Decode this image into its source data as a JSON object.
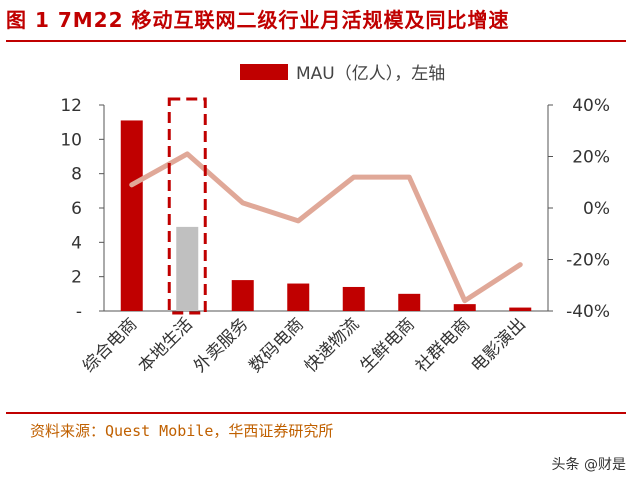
{
  "title": "图 1  7M22 移动互联网二级行业月活规模及同比增速",
  "source": "资料来源：Quest Mobile，华西证券研究所",
  "watermark": "头条 @财是",
  "colors": {
    "bar": "#c00000",
    "highlight_bar": "#c0c0c0",
    "line": "#e0a898",
    "axis": "#555555",
    "title": "#c00000",
    "source": "#c06000"
  },
  "chart_data": {
    "type": "bar",
    "categories": [
      "综合电商",
      "本地生活",
      "外卖服务",
      "数码电商",
      "快递物流",
      "生鲜电商",
      "社群电商",
      "电影演出"
    ],
    "series": [
      {
        "name": "MAU（亿人），左轴",
        "type": "bar",
        "axis": "left",
        "values": [
          11.1,
          4.9,
          1.8,
          1.6,
          1.4,
          1.0,
          0.4,
          0.2
        ],
        "highlight_index": 1
      },
      {
        "type": "line",
        "axis": "right",
        "values": [
          9,
          21,
          2,
          -5,
          12,
          12,
          -36,
          -22
        ]
      }
    ],
    "left_axis": {
      "ylim": [
        0,
        12
      ],
      "ticks": [
        "-",
        "2",
        "4",
        "6",
        "8",
        "10",
        "12"
      ]
    },
    "right_axis": {
      "ylim": [
        -40,
        40
      ],
      "ticks": [
        "-40%",
        "-20%",
        "0%",
        "20%",
        "40%"
      ]
    },
    "legend": {
      "position": "top",
      "label": "MAU（亿人），左轴"
    },
    "annotation": "dashed red box around 本地生活"
  }
}
